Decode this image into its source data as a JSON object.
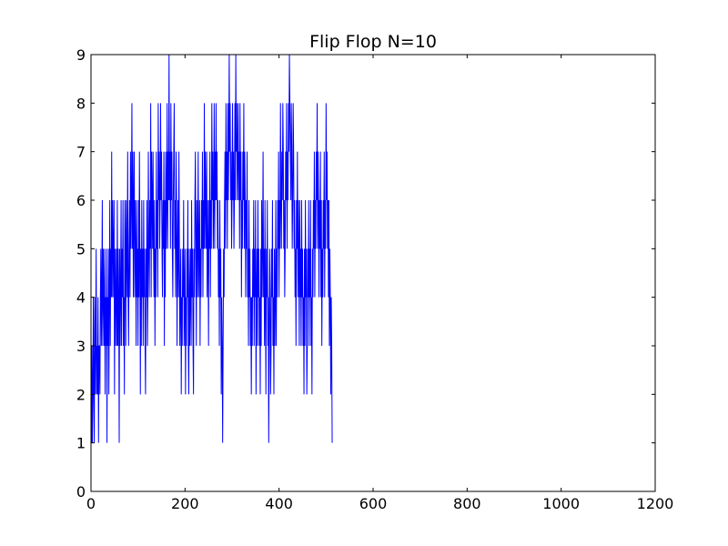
{
  "chart_data": {
    "type": "line",
    "title": "Flip Flop N=10",
    "xlabel": "",
    "ylabel": "",
    "xlim": [
      0,
      1200
    ],
    "ylim": [
      0,
      9
    ],
    "xticks": [
      0,
      200,
      400,
      600,
      800,
      1000,
      1200
    ],
    "yticks": [
      0,
      1,
      2,
      3,
      4,
      5,
      6,
      7,
      8,
      9
    ],
    "grid": false,
    "line_color": "#0000ff",
    "series": [
      {
        "x_start": 0,
        "x_step": 1,
        "values": [
          2,
          1,
          3,
          1,
          2,
          4,
          2,
          1,
          4,
          2,
          3,
          5,
          2,
          3,
          2,
          4,
          1,
          3,
          3,
          2,
          4,
          5,
          3,
          4,
          6,
          3,
          5,
          4,
          3,
          5,
          2,
          4,
          3,
          5,
          1,
          4,
          3,
          5,
          2,
          4,
          6,
          3,
          5,
          4,
          7,
          4,
          6,
          5,
          4,
          6,
          2,
          5,
          3,
          4,
          5,
          3,
          6,
          3,
          5,
          4,
          1,
          5,
          3,
          4,
          6,
          3,
          5,
          4,
          6,
          3,
          4,
          2,
          6,
          5,
          3,
          6,
          5,
          4,
          7,
          4,
          3,
          5,
          6,
          4,
          7,
          5,
          6,
          8,
          5,
          7,
          4,
          6,
          7,
          4,
          6,
          5,
          3,
          6,
          4,
          5,
          3,
          6,
          4,
          7,
          5,
          2,
          5,
          3,
          6,
          4,
          5,
          3,
          6,
          4,
          5,
          3,
          2,
          5,
          4,
          6,
          3,
          4,
          7,
          5,
          4,
          6,
          5,
          8,
          4,
          7,
          6,
          5,
          7,
          5,
          4,
          6,
          3,
          5,
          4,
          7,
          5,
          6,
          4,
          8,
          6,
          7,
          5,
          6,
          8,
          6,
          7,
          5,
          4,
          6,
          5,
          7,
          3,
          6,
          4,
          7,
          5,
          6,
          8,
          5,
          7,
          6,
          9,
          6,
          7,
          5,
          8,
          6,
          7,
          5,
          4,
          6,
          7,
          8,
          5,
          6,
          4,
          7,
          6,
          3,
          5,
          6,
          4,
          7,
          5,
          3,
          4,
          5,
          2,
          4,
          3,
          5,
          4,
          6,
          3,
          4,
          5,
          2,
          4,
          3,
          5,
          4,
          6,
          3,
          2,
          5,
          3,
          4,
          5,
          3,
          6,
          4,
          5,
          3,
          2,
          5,
          4,
          6,
          7,
          5,
          3,
          6,
          4,
          5,
          7,
          4,
          5,
          6,
          3,
          5,
          4,
          6,
          5,
          7,
          4,
          6,
          5,
          8,
          5,
          7,
          6,
          5,
          7,
          4,
          6,
          5,
          3,
          6,
          5,
          7,
          4,
          6,
          5,
          8,
          6,
          7,
          5,
          6,
          8,
          5,
          7,
          6,
          8,
          6,
          7,
          5,
          6,
          4,
          5,
          3,
          6,
          4,
          5,
          2,
          4,
          3,
          1,
          3,
          5,
          4,
          6,
          7,
          5,
          8,
          6,
          7,
          5,
          8,
          6,
          7,
          9,
          7,
          8,
          6,
          7,
          5,
          6,
          8,
          6,
          7,
          5,
          6,
          8,
          6,
          9,
          7,
          8,
          6,
          7,
          8,
          6,
          7,
          5,
          8,
          6,
          7,
          4,
          6,
          5,
          7,
          6,
          8,
          5,
          7,
          6,
          4,
          6,
          5,
          7,
          4,
          5,
          3,
          6,
          4,
          5,
          3,
          4,
          2,
          4,
          3,
          5,
          4,
          6,
          3,
          5,
          4,
          6,
          2,
          4,
          5,
          3,
          6,
          4,
          5,
          3,
          4,
          2,
          5,
          3,
          6,
          4,
          5,
          7,
          4,
          5,
          3,
          6,
          4,
          2,
          5,
          4,
          6,
          3,
          4,
          1,
          3,
          5,
          4,
          2,
          3,
          5,
          4,
          6,
          3,
          4,
          2,
          5,
          3,
          4,
          6,
          3,
          5,
          4,
          6,
          5,
          7,
          4,
          6,
          5,
          8,
          6,
          5,
          7,
          6,
          8,
          7,
          5,
          6,
          4,
          5,
          7,
          6,
          8,
          5,
          7,
          6,
          8,
          7,
          9,
          8,
          7,
          6,
          8,
          7,
          5,
          6,
          8,
          7,
          5,
          6,
          4,
          5,
          3,
          6,
          5,
          7,
          4,
          6,
          5,
          3,
          6,
          4,
          5,
          3,
          6,
          4,
          5,
          3,
          4,
          2,
          5,
          3,
          6,
          4,
          5,
          2,
          3,
          5,
          4,
          6,
          3,
          5,
          4,
          6,
          3,
          4,
          2,
          5,
          4,
          6,
          5,
          7,
          4,
          6,
          5,
          7,
          6,
          8,
          5,
          7,
          6,
          4,
          6,
          5,
          7,
          4,
          6,
          3,
          5,
          4,
          6,
          5,
          7,
          4,
          6,
          5,
          8,
          6,
          7,
          5,
          6,
          4,
          6,
          3,
          5,
          4,
          2,
          4,
          3,
          1
        ]
      }
    ]
  }
}
